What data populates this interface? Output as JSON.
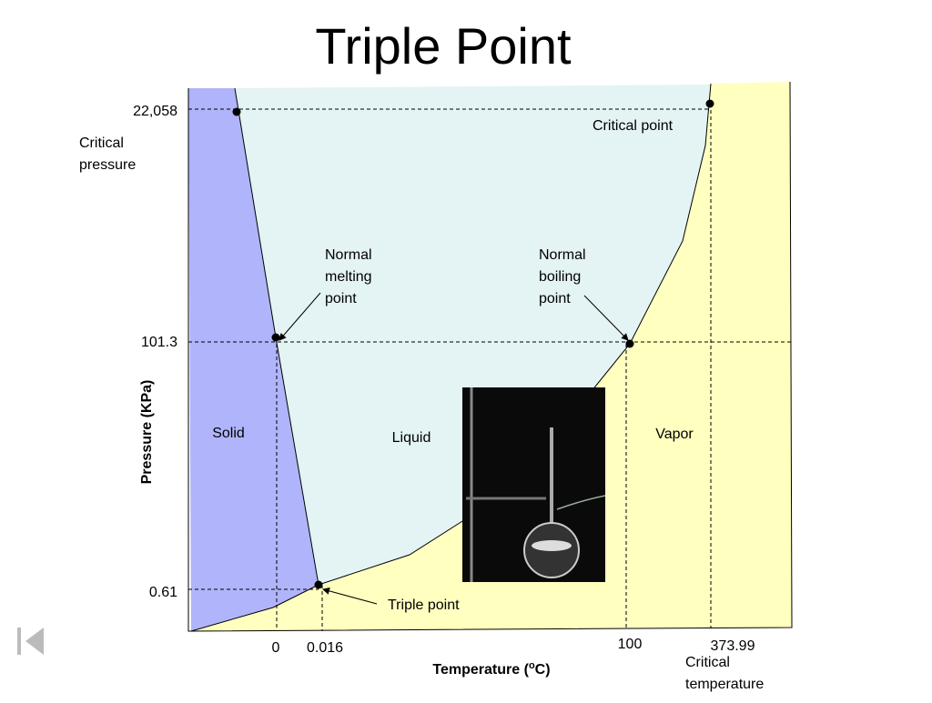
{
  "title": "Triple Point",
  "y_axis": {
    "title": "Pressure (KPa)",
    "ticks": [
      "22,058",
      "101.3",
      "0.61"
    ],
    "note": [
      "Critical",
      "pressure"
    ]
  },
  "x_axis": {
    "title": [
      "Temperature (",
      "o",
      "C)"
    ],
    "ticks": [
      "0",
      "0.016",
      "100",
      "373.99"
    ],
    "note": [
      "Critical",
      "temperature"
    ]
  },
  "regions": [
    "Solid",
    "Liquid",
    "Vapor"
  ],
  "points": {
    "critical": [
      "Critical point"
    ],
    "melting": [
      "Normal",
      "melting",
      "point"
    ],
    "boiling": [
      "Normal",
      "boiling",
      "point"
    ],
    "triple": [
      "Triple point"
    ]
  }
}
